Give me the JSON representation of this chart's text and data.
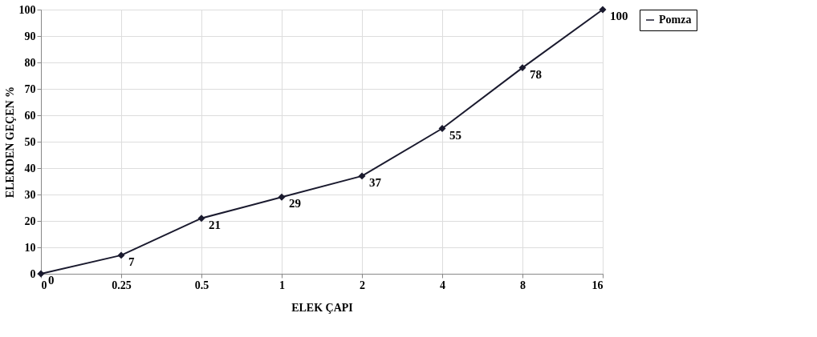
{
  "chart_data": {
    "type": "line",
    "xlabel": "ELEK ÇAPI",
    "ylabel": "ELEKDEN GEÇEN %",
    "categories": [
      "0",
      "0.25",
      "0.5",
      "1",
      "2",
      "4",
      "8",
      "16"
    ],
    "series": [
      {
        "name": "Pomza",
        "color": "#1a1a2e",
        "values": [
          0,
          7,
          21,
          29,
          37,
          55,
          78,
          100
        ]
      }
    ],
    "ylim": [
      0,
      100
    ],
    "yticks": [
      0,
      10,
      20,
      30,
      40,
      50,
      60,
      70,
      80,
      90,
      100
    ],
    "grid": true,
    "legend": "right",
    "marker": "diamond",
    "line_style": "solid",
    "data_labels": true
  }
}
